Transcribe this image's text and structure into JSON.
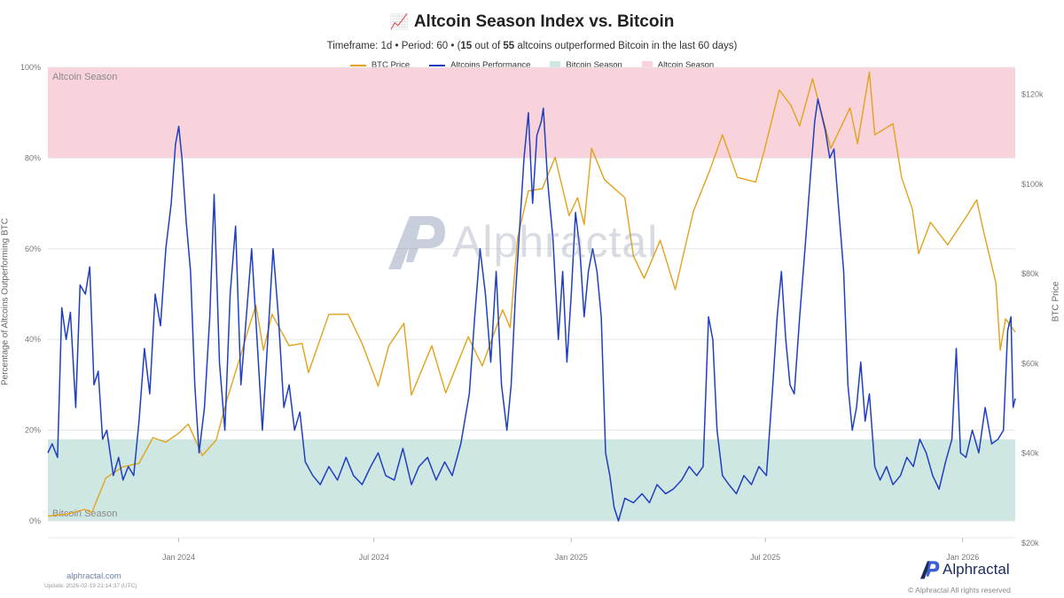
{
  "header": {
    "emoji": "📈",
    "title": "Altcoin Season Index vs. Bitcoin",
    "subtitle_prefix": "Timeframe: 1d  •  Period: 60  •  (",
    "subtitle_count": "15",
    "subtitle_mid": " out of ",
    "subtitle_total": "55",
    "subtitle_suffix": " altcoins outperformed Bitcoin in the last 60 days)"
  },
  "legend": {
    "btc_price": "BTC Price",
    "altcoins_performance": "Altcoins Performance",
    "bitcoin_season": "Bitcoin Season",
    "altcoin_season": "Altcoin Season"
  },
  "colors": {
    "btc_line": "#e3a21a",
    "alt_line": "#1f3fbf",
    "bitcoin_season_band": "#cfe7e3",
    "altcoin_season_band": "#f8d3dc"
  },
  "footer": {
    "site": "alphractal.com",
    "updated": "Update: 2026-02-19 21:14:37 (UTC)",
    "brand": "Alphractal",
    "copyright": "© Alphractal All rights reserved"
  },
  "watermark": "Alphractal",
  "chart_data": {
    "type": "line",
    "title": "Altcoin Season Index vs. Bitcoin",
    "ylabel_left": "Percentage of Altcoins Outperforming BTC",
    "ylabel_right": "BTC Price",
    "left_ylim": [
      0,
      100
    ],
    "right_ylim": [
      20000,
      130000
    ],
    "left_ticks": [
      {
        "value": 0,
        "label": "0%"
      },
      {
        "value": 20,
        "label": "20%"
      },
      {
        "value": 40,
        "label": "40%"
      },
      {
        "value": 60,
        "label": "60%"
      },
      {
        "value": 80,
        "label": "80%"
      },
      {
        "value": 100,
        "label": "100%"
      }
    ],
    "right_ticks": [
      {
        "value": 20000,
        "label": "$20k"
      },
      {
        "value": 40000,
        "label": "$40k"
      },
      {
        "value": 60000,
        "label": "$60k"
      },
      {
        "value": 80000,
        "label": "$80k"
      },
      {
        "value": 100000,
        "label": "$100k"
      },
      {
        "value": 120000,
        "label": "$120k"
      }
    ],
    "xlim": [
      "2023-09-01",
      "2026-02-19"
    ],
    "x_ticks": [
      {
        "date": "2024-01-01",
        "label": "Jan 2024"
      },
      {
        "date": "2024-07-01",
        "label": "Jul 2024"
      },
      {
        "date": "2025-01-01",
        "label": "Jan 2025"
      },
      {
        "date": "2025-07-01",
        "label": "Jul 2025"
      },
      {
        "date": "2026-01-01",
        "label": "Jan 2026"
      }
    ],
    "bands": [
      {
        "name": "Bitcoin Season",
        "from": 0,
        "to": 18,
        "label": "Bitcoin Season",
        "label_position": "bottom-left"
      },
      {
        "name": "Altcoin Season",
        "from": 80,
        "to": 100,
        "label": "Altcoin Season",
        "label_position": "top-left"
      }
    ],
    "grid": true,
    "legend_position": "top-center",
    "series": [
      {
        "name": "BTC Price",
        "axis": "right",
        "points": [
          [
            "2023-09-01",
            26000
          ],
          [
            "2023-09-20",
            26500
          ],
          [
            "2023-10-05",
            27500
          ],
          [
            "2023-10-12",
            26800
          ],
          [
            "2023-10-25",
            34500
          ],
          [
            "2023-11-10",
            37000
          ],
          [
            "2023-11-25",
            37800
          ],
          [
            "2023-12-08",
            43500
          ],
          [
            "2023-12-20",
            42500
          ],
          [
            "2024-01-01",
            44500
          ],
          [
            "2024-01-10",
            46500
          ],
          [
            "2024-01-23",
            39500
          ],
          [
            "2024-02-05",
            43000
          ],
          [
            "2024-02-15",
            52000
          ],
          [
            "2024-02-28",
            62000
          ],
          [
            "2024-03-05",
            67000
          ],
          [
            "2024-03-13",
            73000
          ],
          [
            "2024-03-20",
            63000
          ],
          [
            "2024-03-28",
            71000
          ],
          [
            "2024-04-13",
            64000
          ],
          [
            "2024-04-25",
            64500
          ],
          [
            "2024-05-01",
            58000
          ],
          [
            "2024-05-20",
            71000
          ],
          [
            "2024-06-07",
            71000
          ],
          [
            "2024-06-20",
            64500
          ],
          [
            "2024-07-05",
            55000
          ],
          [
            "2024-07-15",
            64000
          ],
          [
            "2024-07-29",
            69000
          ],
          [
            "2024-08-05",
            53000
          ],
          [
            "2024-08-24",
            64000
          ],
          [
            "2024-09-06",
            53500
          ],
          [
            "2024-09-27",
            66000
          ],
          [
            "2024-10-10",
            59500
          ],
          [
            "2024-10-29",
            72000
          ],
          [
            "2024-11-05",
            68000
          ],
          [
            "2024-11-12",
            88000
          ],
          [
            "2024-11-22",
            98500
          ],
          [
            "2024-12-05",
            99000
          ],
          [
            "2024-12-17",
            106000
          ],
          [
            "2024-12-30",
            93000
          ],
          [
            "2025-01-07",
            97000
          ],
          [
            "2025-01-13",
            91000
          ],
          [
            "2025-01-20",
            108000
          ],
          [
            "2025-02-01",
            101000
          ],
          [
            "2025-02-20",
            97000
          ],
          [
            "2025-02-28",
            84000
          ],
          [
            "2025-03-10",
            79000
          ],
          [
            "2025-03-25",
            87500
          ],
          [
            "2025-04-08",
            76500
          ],
          [
            "2025-04-25",
            94000
          ],
          [
            "2025-05-10",
            103000
          ],
          [
            "2025-05-22",
            111000
          ],
          [
            "2025-06-05",
            101500
          ],
          [
            "2025-06-22",
            100500
          ],
          [
            "2025-06-30",
            107500
          ],
          [
            "2025-07-14",
            121000
          ],
          [
            "2025-07-25",
            117500
          ],
          [
            "2025-08-02",
            113000
          ],
          [
            "2025-08-14",
            123500
          ],
          [
            "2025-08-31",
            108000
          ],
          [
            "2025-09-18",
            117000
          ],
          [
            "2025-09-25",
            109000
          ],
          [
            "2025-10-06",
            125000
          ],
          [
            "2025-10-11",
            111000
          ],
          [
            "2025-10-28",
            113500
          ],
          [
            "2025-11-05",
            101500
          ],
          [
            "2025-11-15",
            94500
          ],
          [
            "2025-11-21",
            84500
          ],
          [
            "2025-12-02",
            91500
          ],
          [
            "2025-12-18",
            86500
          ],
          [
            "2026-01-05",
            93000
          ],
          [
            "2026-01-14",
            96500
          ],
          [
            "2026-01-20",
            90000
          ],
          [
            "2026-02-01",
            78000
          ],
          [
            "2026-02-05",
            63000
          ],
          [
            "2026-02-10",
            70000
          ],
          [
            "2026-02-19",
            67000
          ]
        ]
      },
      {
        "name": "Altcoins Performance",
        "axis": "left",
        "points": [
          [
            "2023-09-01",
            15
          ],
          [
            "2023-09-05",
            17
          ],
          [
            "2023-09-10",
            14
          ],
          [
            "2023-09-14",
            47
          ],
          [
            "2023-09-18",
            40
          ],
          [
            "2023-09-22",
            46
          ],
          [
            "2023-09-27",
            25
          ],
          [
            "2023-10-01",
            52
          ],
          [
            "2023-10-06",
            50
          ],
          [
            "2023-10-10",
            56
          ],
          [
            "2023-10-14",
            30
          ],
          [
            "2023-10-18",
            33
          ],
          [
            "2023-10-22",
            18
          ],
          [
            "2023-10-26",
            20
          ],
          [
            "2023-11-01",
            10
          ],
          [
            "2023-11-06",
            14
          ],
          [
            "2023-11-10",
            9
          ],
          [
            "2023-11-15",
            12
          ],
          [
            "2023-11-20",
            10
          ],
          [
            "2023-11-25",
            22
          ],
          [
            "2023-11-30",
            38
          ],
          [
            "2023-12-05",
            28
          ],
          [
            "2023-12-10",
            50
          ],
          [
            "2023-12-15",
            43
          ],
          [
            "2023-12-20",
            60
          ],
          [
            "2023-12-25",
            70
          ],
          [
            "2023-12-29",
            83
          ],
          [
            "2024-01-01",
            87
          ],
          [
            "2024-01-04",
            80
          ],
          [
            "2024-01-08",
            66
          ],
          [
            "2024-01-12",
            55
          ],
          [
            "2024-01-16",
            30
          ],
          [
            "2024-01-20",
            15
          ],
          [
            "2024-01-25",
            25
          ],
          [
            "2024-01-30",
            45
          ],
          [
            "2024-02-03",
            72
          ],
          [
            "2024-02-08",
            35
          ],
          [
            "2024-02-13",
            20
          ],
          [
            "2024-02-18",
            50
          ],
          [
            "2024-02-23",
            65
          ],
          [
            "2024-02-28",
            30
          ],
          [
            "2024-03-04",
            45
          ],
          [
            "2024-03-09",
            60
          ],
          [
            "2024-03-14",
            40
          ],
          [
            "2024-03-19",
            20
          ],
          [
            "2024-03-24",
            40
          ],
          [
            "2024-03-29",
            60
          ],
          [
            "2024-04-03",
            45
          ],
          [
            "2024-04-08",
            25
          ],
          [
            "2024-04-13",
            30
          ],
          [
            "2024-04-18",
            20
          ],
          [
            "2024-04-23",
            24
          ],
          [
            "2024-04-28",
            13
          ],
          [
            "2024-05-05",
            10
          ],
          [
            "2024-05-12",
            8
          ],
          [
            "2024-05-20",
            12
          ],
          [
            "2024-05-28",
            9
          ],
          [
            "2024-06-05",
            14
          ],
          [
            "2024-06-12",
            10
          ],
          [
            "2024-06-20",
            8
          ],
          [
            "2024-06-28",
            12
          ],
          [
            "2024-07-05",
            15
          ],
          [
            "2024-07-12",
            10
          ],
          [
            "2024-07-20",
            9
          ],
          [
            "2024-07-28",
            16
          ],
          [
            "2024-08-05",
            8
          ],
          [
            "2024-08-12",
            12
          ],
          [
            "2024-08-20",
            14
          ],
          [
            "2024-08-28",
            9
          ],
          [
            "2024-09-05",
            13
          ],
          [
            "2024-09-12",
            10
          ],
          [
            "2024-09-20",
            17
          ],
          [
            "2024-09-28",
            28
          ],
          [
            "2024-10-03",
            45
          ],
          [
            "2024-10-08",
            60
          ],
          [
            "2024-10-13",
            50
          ],
          [
            "2024-10-18",
            35
          ],
          [
            "2024-10-23",
            55
          ],
          [
            "2024-10-28",
            30
          ],
          [
            "2024-11-02",
            20
          ],
          [
            "2024-11-06",
            30
          ],
          [
            "2024-11-10",
            50
          ],
          [
            "2024-11-14",
            65
          ],
          [
            "2024-11-18",
            80
          ],
          [
            "2024-11-22",
            90
          ],
          [
            "2024-11-26",
            70
          ],
          [
            "2024-11-30",
            85
          ],
          [
            "2024-12-04",
            88
          ],
          [
            "2024-12-06",
            91
          ],
          [
            "2024-12-10",
            75
          ],
          [
            "2024-12-15",
            62
          ],
          [
            "2024-12-20",
            40
          ],
          [
            "2024-12-24",
            55
          ],
          [
            "2024-12-28",
            35
          ],
          [
            "2025-01-01",
            50
          ],
          [
            "2025-01-05",
            68
          ],
          [
            "2025-01-09",
            60
          ],
          [
            "2025-01-13",
            45
          ],
          [
            "2025-01-17",
            55
          ],
          [
            "2025-01-21",
            60
          ],
          [
            "2025-01-25",
            55
          ],
          [
            "2025-01-29",
            45
          ],
          [
            "2025-02-02",
            15
          ],
          [
            "2025-02-06",
            10
          ],
          [
            "2025-02-10",
            3
          ],
          [
            "2025-02-14",
            0
          ],
          [
            "2025-02-20",
            5
          ],
          [
            "2025-02-28",
            4
          ],
          [
            "2025-03-08",
            6
          ],
          [
            "2025-03-15",
            4
          ],
          [
            "2025-03-22",
            8
          ],
          [
            "2025-03-30",
            6
          ],
          [
            "2025-04-06",
            7
          ],
          [
            "2025-04-14",
            9
          ],
          [
            "2025-04-21",
            12
          ],
          [
            "2025-04-28",
            10
          ],
          [
            "2025-05-04",
            12
          ],
          [
            "2025-05-09",
            45
          ],
          [
            "2025-05-13",
            40
          ],
          [
            "2025-05-17",
            20
          ],
          [
            "2025-05-22",
            10
          ],
          [
            "2025-05-28",
            8
          ],
          [
            "2025-06-04",
            6
          ],
          [
            "2025-06-11",
            10
          ],
          [
            "2025-06-18",
            8
          ],
          [
            "2025-06-25",
            12
          ],
          [
            "2025-07-02",
            10
          ],
          [
            "2025-07-08",
            30
          ],
          [
            "2025-07-12",
            45
          ],
          [
            "2025-07-16",
            55
          ],
          [
            "2025-07-20",
            40
          ],
          [
            "2025-07-24",
            30
          ],
          [
            "2025-07-28",
            28
          ],
          [
            "2025-08-02",
            45
          ],
          [
            "2025-08-07",
            60
          ],
          [
            "2025-08-12",
            76
          ],
          [
            "2025-08-16",
            88
          ],
          [
            "2025-08-19",
            93
          ],
          [
            "2025-08-22",
            90
          ],
          [
            "2025-08-26",
            86
          ],
          [
            "2025-08-30",
            80
          ],
          [
            "2025-09-03",
            82
          ],
          [
            "2025-09-07",
            70
          ],
          [
            "2025-09-12",
            55
          ],
          [
            "2025-09-16",
            30
          ],
          [
            "2025-09-20",
            20
          ],
          [
            "2025-09-24",
            25
          ],
          [
            "2025-09-28",
            35
          ],
          [
            "2025-10-02",
            22
          ],
          [
            "2025-10-06",
            28
          ],
          [
            "2025-10-11",
            12
          ],
          [
            "2025-10-16",
            9
          ],
          [
            "2025-10-22",
            12
          ],
          [
            "2025-10-28",
            8
          ],
          [
            "2025-11-04",
            10
          ],
          [
            "2025-11-10",
            14
          ],
          [
            "2025-11-16",
            12
          ],
          [
            "2025-11-22",
            18
          ],
          [
            "2025-11-28",
            15
          ],
          [
            "2025-12-04",
            10
          ],
          [
            "2025-12-10",
            7
          ],
          [
            "2025-12-16",
            13
          ],
          [
            "2025-12-22",
            18
          ],
          [
            "2025-12-26",
            38
          ],
          [
            "2025-12-30",
            15
          ],
          [
            "2026-01-04",
            14
          ],
          [
            "2026-01-10",
            20
          ],
          [
            "2026-01-16",
            15
          ],
          [
            "2026-01-22",
            25
          ],
          [
            "2026-01-28",
            17
          ],
          [
            "2026-02-03",
            18
          ],
          [
            "2026-02-08",
            20
          ],
          [
            "2026-02-12",
            42
          ],
          [
            "2026-02-15",
            45
          ],
          [
            "2026-02-17",
            25
          ],
          [
            "2026-02-19",
            27
          ]
        ]
      }
    ]
  }
}
